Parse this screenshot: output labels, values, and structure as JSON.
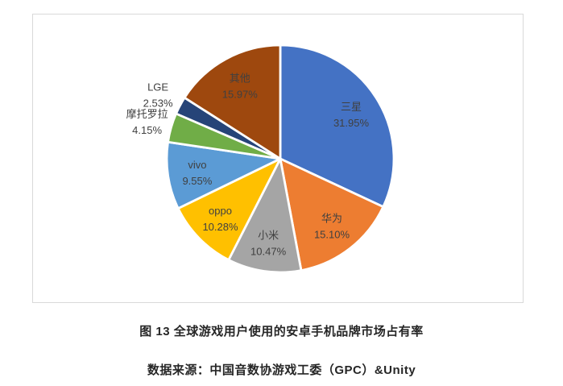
{
  "chart_data": {
    "type": "pie",
    "title": "",
    "direction": "clockwise",
    "start_angle_deg": 0,
    "slice_border_color": "#FFFFFF",
    "label_color": "#404040",
    "frame_border_color": "#D9D9D9",
    "slices": [
      {
        "key": "samsung",
        "label": "三星",
        "value": 31.95,
        "display": "31.95%",
        "color": "#4472C4",
        "label_inside": true
      },
      {
        "key": "huawei",
        "label": "华为",
        "value": 15.1,
        "display": "15.10%",
        "color": "#ED7D31",
        "label_inside": true
      },
      {
        "key": "xiaomi",
        "label": "小米",
        "value": 10.47,
        "display": "10.47%",
        "color": "#A5A5A5",
        "label_inside": true
      },
      {
        "key": "oppo",
        "label": "oppo",
        "value": 10.28,
        "display": "10.28%",
        "color": "#FFC000",
        "label_inside": true
      },
      {
        "key": "vivo",
        "label": "vivo",
        "value": 9.55,
        "display": "9.55%",
        "color": "#5B9BD5",
        "label_inside": true
      },
      {
        "key": "motorola",
        "label": "摩托罗拉",
        "value": 4.15,
        "display": "4.15%",
        "color": "#70AD47",
        "label_inside": false
      },
      {
        "key": "lge",
        "label": "LGE",
        "value": 2.53,
        "display": "2.53%",
        "color": "#264478",
        "label_inside": false
      },
      {
        "key": "other",
        "label": "其他",
        "value": 15.97,
        "display": "15.97%",
        "color": "#9E480E",
        "label_inside": true
      }
    ]
  },
  "captions": {
    "figure_caption": "图 13 全球游戏用户使用的安卓手机品牌市场占有率",
    "source_caption": "数据来源：中国音数协游戏工委（GPC）&Unity"
  }
}
